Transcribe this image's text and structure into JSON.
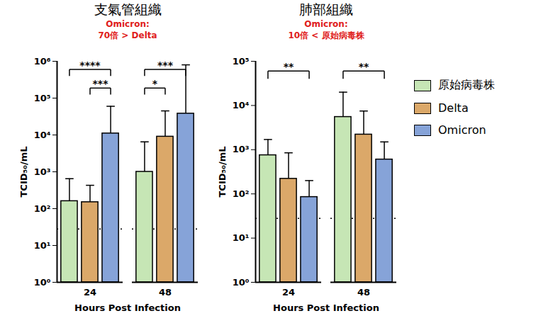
{
  "chart_data": [
    {
      "type": "bar",
      "log": "y",
      "title": "支氣管組織",
      "x_label": "Hours Post Infection",
      "y_label": "TCID₅₀/mL",
      "categories": [
        "24",
        "48"
      ],
      "series": [
        {
          "name": "原始病毒株",
          "color": "#c6e6b5",
          "values": [
            160,
            1000
          ],
          "errors": [
            490,
            5500
          ]
        },
        {
          "name": "Delta",
          "color": "#dba869",
          "values": [
            150,
            9000
          ],
          "errors": [
            280,
            36000
          ]
        },
        {
          "name": "Omicron",
          "color": "#86a3d8",
          "values": [
            11000,
            38000
          ],
          "errors": [
            49000,
            762000
          ]
        }
      ],
      "ylim": [
        1,
        1000000
      ],
      "yticks": [
        {
          "value": 1,
          "label": "10⁰"
        },
        {
          "value": 10,
          "label": "10¹"
        },
        {
          "value": 100,
          "label": "10²"
        },
        {
          "value": 1000,
          "label": "10³"
        },
        {
          "value": 10000,
          "label": "10⁴"
        },
        {
          "value": 100000,
          "label": "10⁵"
        },
        {
          "value": 1000000,
          "label": "10⁶"
        }
      ],
      "limit_line": 28,
      "brackets": [
        {
          "category": "24",
          "from": "原始病毒株",
          "to": "Omicron",
          "label": "****"
        },
        {
          "category": "24",
          "from": "Delta",
          "to": "Omicron",
          "label": "***"
        },
        {
          "category": "48",
          "from": "原始病毒株",
          "to": "Omicron",
          "label": "***"
        },
        {
          "category": "48",
          "from": "原始病毒株",
          "to": "Delta",
          "label": "*"
        }
      ],
      "annotation": "Omicron:\n70倍 > Delta"
    },
    {
      "type": "bar",
      "log": "y",
      "title": "肺部組織",
      "x_label": "Hours Post Infection",
      "y_label": "TCID₅₀/mL",
      "categories": [
        "24",
        "48"
      ],
      "series": [
        {
          "name": "原始病毒株",
          "color": "#c6e6b5",
          "values": [
            750,
            5500
          ],
          "errors": [
            950,
            14500
          ]
        },
        {
          "name": "Delta",
          "color": "#dba869",
          "values": [
            220,
            2200
          ],
          "errors": [
            630,
            5300
          ]
        },
        {
          "name": "Omicron",
          "color": "#86a3d8",
          "values": [
            85,
            600
          ],
          "errors": [
            115,
            900
          ]
        }
      ],
      "ylim": [
        1,
        100000
      ],
      "yticks": [
        {
          "value": 1,
          "label": "10⁰"
        },
        {
          "value": 10,
          "label": "10¹"
        },
        {
          "value": 100,
          "label": "10²"
        },
        {
          "value": 1000,
          "label": "10³"
        },
        {
          "value": 10000,
          "label": "10⁴"
        },
        {
          "value": 100000,
          "label": "10⁵"
        }
      ],
      "limit_line": 28,
      "brackets": [
        {
          "category": "24",
          "from": "原始病毒株",
          "to": "Omicron",
          "label": "**"
        },
        {
          "category": "48",
          "from": "原始病毒株",
          "to": "Omicron",
          "label": "**"
        }
      ],
      "annotation": "Omicron:\n10倍 < 原始病毒株",
      "legend": "right"
    }
  ]
}
